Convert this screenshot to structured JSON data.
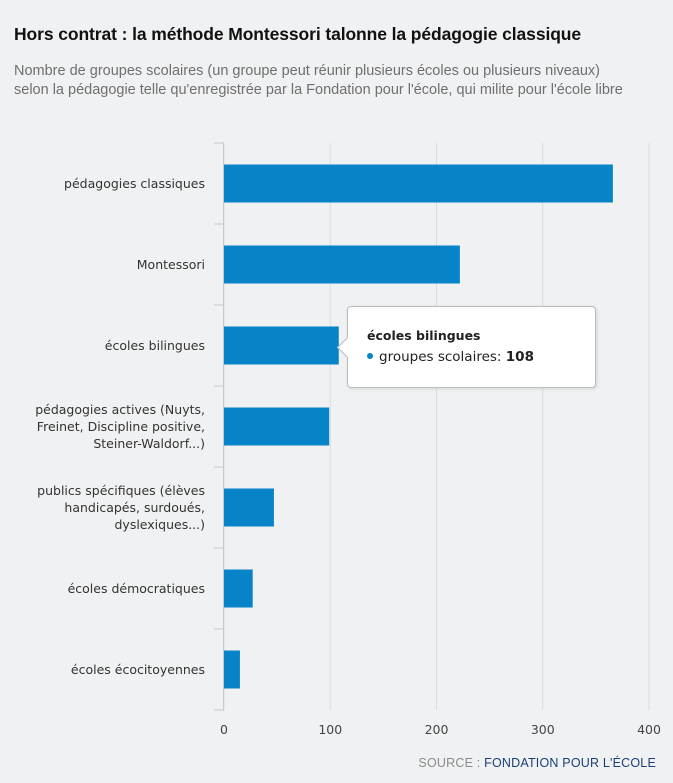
{
  "title": "Hors contrat : la méthode Montessori talonne la pédagogie classique",
  "subtitle": "Nombre de groupes scolaires (un groupe peut réunir plusieurs écoles ou plusieurs niveaux) selon la pédagogie telle qu'enregistrée par la Fondation pour l'école, qui milite pour l'école libre",
  "source": {
    "prefix": "SOURCE :",
    "link": "FONDATION POUR L'ÉCOLE"
  },
  "tooltip": {
    "category": "écoles bilingues",
    "series": "groupes scolaires:",
    "value": "108"
  },
  "colors": {
    "bar": "#0684c7",
    "grid": "#dcdcdc",
    "background": "#f0f1f2"
  },
  "chart_data": {
    "type": "bar",
    "orientation": "horizontal",
    "categories": [
      [
        "pédagogies classiques"
      ],
      [
        "Montessori"
      ],
      [
        "écoles bilingues"
      ],
      [
        "pédagogies actives (Nuyts,",
        "Freinet, Discipline positive,",
        "Steiner-Waldorf...)"
      ],
      [
        "publics spécifiques (élèves",
        "handicapés, surdoués,",
        "dyslexiques...)"
      ],
      [
        "écoles démocratiques"
      ],
      [
        "écoles écocitoyennes"
      ]
    ],
    "series": [
      {
        "name": "groupes scolaires",
        "values": [
          366,
          222,
          108,
          99,
          47,
          27,
          15
        ]
      }
    ],
    "xlim": [
      0,
      400
    ],
    "ticks": [
      "0",
      "100",
      "200",
      "300",
      "400"
    ],
    "grid": true,
    "legend": false
  }
}
